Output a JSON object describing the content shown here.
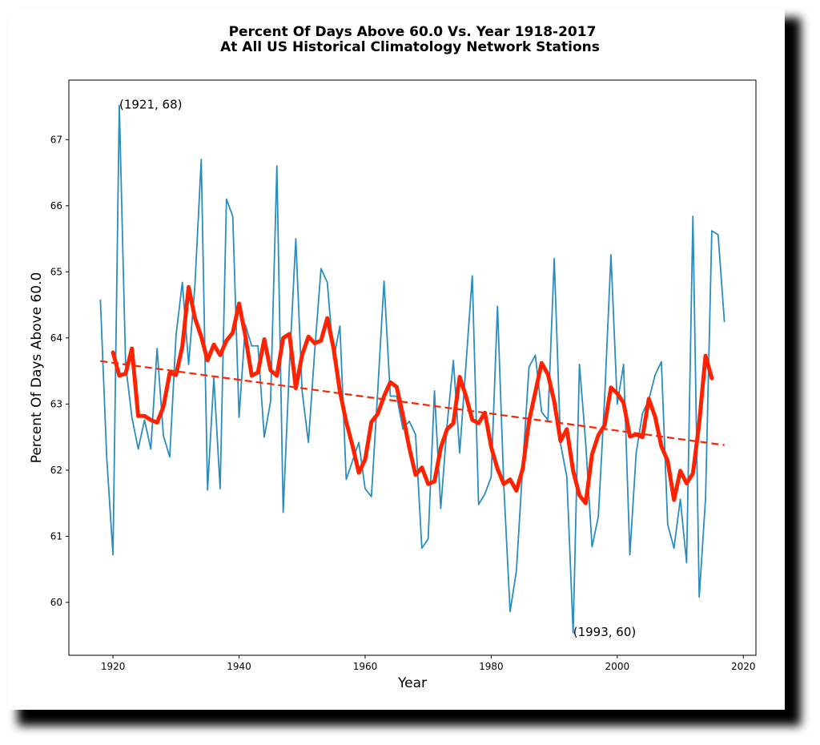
{
  "chart_data": {
    "type": "line",
    "title_line1": "Percent Of Days Above 60.0 Vs. Year 1918-2017",
    "title_line2": "At All US Historical Climatology Network Stations",
    "xlabel": "Year",
    "ylabel": "Percent Of Days Above 60.0",
    "xlim": [
      1913,
      2022
    ],
    "ylim": [
      59.2,
      67.9
    ],
    "x_ticks": [
      1920,
      1940,
      1960,
      1980,
      2000,
      2020
    ],
    "y_ticks": [
      60,
      61,
      62,
      63,
      64,
      65,
      66,
      67
    ],
    "colors": {
      "annual": "#2b8cbe",
      "smoothed": "#ff2200",
      "trend": "#ff2200"
    },
    "series": [
      {
        "key": "annual",
        "x": [
          1918,
          1919,
          1920,
          1921,
          1922,
          1923,
          1924,
          1925,
          1926,
          1927,
          1928,
          1929,
          1930,
          1931,
          1932,
          1933,
          1934,
          1935,
          1936,
          1937,
          1938,
          1939,
          1940,
          1941,
          1942,
          1943,
          1944,
          1945,
          1946,
          1947,
          1948,
          1949,
          1950,
          1951,
          1952,
          1953,
          1954,
          1955,
          1956,
          1957,
          1958,
          1959,
          1960,
          1961,
          1962,
          1963,
          1964,
          1965,
          1966,
          1967,
          1968,
          1969,
          1970,
          1971,
          1972,
          1973,
          1974,
          1975,
          1976,
          1977,
          1978,
          1979,
          1980,
          1981,
          1982,
          1983,
          1984,
          1985,
          1986,
          1987,
          1988,
          1989,
          1990,
          1991,
          1992,
          1993,
          1994,
          1995,
          1996,
          1997,
          1998,
          1999,
          2000,
          2001,
          2002,
          2003,
          2004,
          2005,
          2006,
          2007,
          2008,
          2009,
          2010,
          2011,
          2012,
          2013,
          2014,
          2015,
          2016,
          2017
        ],
        "values": [
          64.58,
          62.2,
          60.72,
          67.52,
          63.6,
          62.8,
          62.32,
          62.76,
          62.32,
          63.84,
          62.52,
          62.2,
          64.04,
          64.84,
          63.6,
          64.8,
          66.7,
          61.7,
          63.4,
          61.72,
          66.1,
          65.84,
          62.8,
          64.2,
          63.88,
          63.88,
          62.5,
          63.04,
          66.6,
          61.36,
          63.6,
          65.5,
          63.2,
          62.42,
          63.8,
          65.05,
          64.84,
          63.68,
          64.18,
          61.86,
          62.14,
          62.42,
          61.72,
          61.6,
          63.2,
          64.86,
          63.12,
          63.12,
          62.62,
          62.74,
          62.54,
          60.82,
          60.96,
          63.2,
          61.42,
          62.68,
          63.66,
          62.26,
          63.6,
          64.94,
          61.48,
          61.64,
          61.9,
          64.48,
          61.76,
          59.86,
          60.48,
          62.06,
          63.56,
          63.74,
          62.88,
          62.76,
          65.2,
          62.4,
          61.9,
          59.54,
          63.6,
          62.4,
          60.84,
          61.3,
          63.1,
          65.26,
          63.0,
          63.6,
          60.72,
          62.26,
          62.86,
          63.06,
          63.44,
          63.64,
          61.18,
          60.82,
          61.56,
          60.6,
          65.84,
          60.08,
          61.56,
          65.62,
          65.56,
          64.24
        ]
      },
      {
        "key": "smoothed",
        "x": [
          1920,
          1921,
          1922,
          1923,
          1924,
          1925,
          1926,
          1927,
          1928,
          1929,
          1930,
          1931,
          1932,
          1933,
          1934,
          1935,
          1936,
          1937,
          1938,
          1939,
          1940,
          1941,
          1942,
          1943,
          1944,
          1945,
          1946,
          1947,
          1948,
          1949,
          1950,
          1951,
          1952,
          1953,
          1954,
          1955,
          1956,
          1957,
          1958,
          1959,
          1960,
          1961,
          1962,
          1963,
          1964,
          1965,
          1966,
          1967,
          1968,
          1969,
          1970,
          1971,
          1972,
          1973,
          1974,
          1975,
          1976,
          1977,
          1978,
          1979,
          1980,
          1981,
          1982,
          1983,
          1984,
          1985,
          1986,
          1987,
          1988,
          1989,
          1990,
          1991,
          1992,
          1993,
          1994,
          1995,
          1996,
          1997,
          1998,
          1999,
          2000,
          2001,
          2002,
          2003,
          2004,
          2005,
          2006,
          2007,
          2008,
          2009,
          2010,
          2011,
          2012,
          2013,
          2014,
          2015
        ],
        "values": [
          63.78,
          63.43,
          63.46,
          63.84,
          62.82,
          62.82,
          62.76,
          62.72,
          62.96,
          63.47,
          63.44,
          63.87,
          64.77,
          64.3,
          64.02,
          63.66,
          63.9,
          63.74,
          63.96,
          64.08,
          64.52,
          64.03,
          63.43,
          63.48,
          63.98,
          63.51,
          63.43,
          64.0,
          64.06,
          63.24,
          63.74,
          64.02,
          63.92,
          63.96,
          64.3,
          63.84,
          63.19,
          62.73,
          62.37,
          61.96,
          62.16,
          62.73,
          62.85,
          63.12,
          63.33,
          63.26,
          62.83,
          62.34,
          61.93,
          62.04,
          61.79,
          61.83,
          62.34,
          62.62,
          62.71,
          63.41,
          63.12,
          62.76,
          62.71,
          62.87,
          62.35,
          62.02,
          61.79,
          61.86,
          61.69,
          62.02,
          62.74,
          63.18,
          63.62,
          63.45,
          63.04,
          62.44,
          62.62,
          61.99,
          61.62,
          61.5,
          62.24,
          62.53,
          62.68,
          63.25,
          63.16,
          63.02,
          62.51,
          62.54,
          62.5,
          63.08,
          62.81,
          62.36,
          62.14,
          61.55,
          61.99,
          61.8,
          61.95,
          62.71,
          63.73,
          63.39
        ]
      },
      {
        "key": "trend",
        "style": "dashed",
        "x": [
          1918,
          2017
        ],
        "values": [
          63.65,
          62.38
        ]
      }
    ],
    "annotations": [
      {
        "text": "(1921, 68)",
        "x": 1921,
        "y": 67.52
      },
      {
        "text": "(1993, 60)",
        "x": 1993,
        "y": 59.54
      }
    ]
  }
}
